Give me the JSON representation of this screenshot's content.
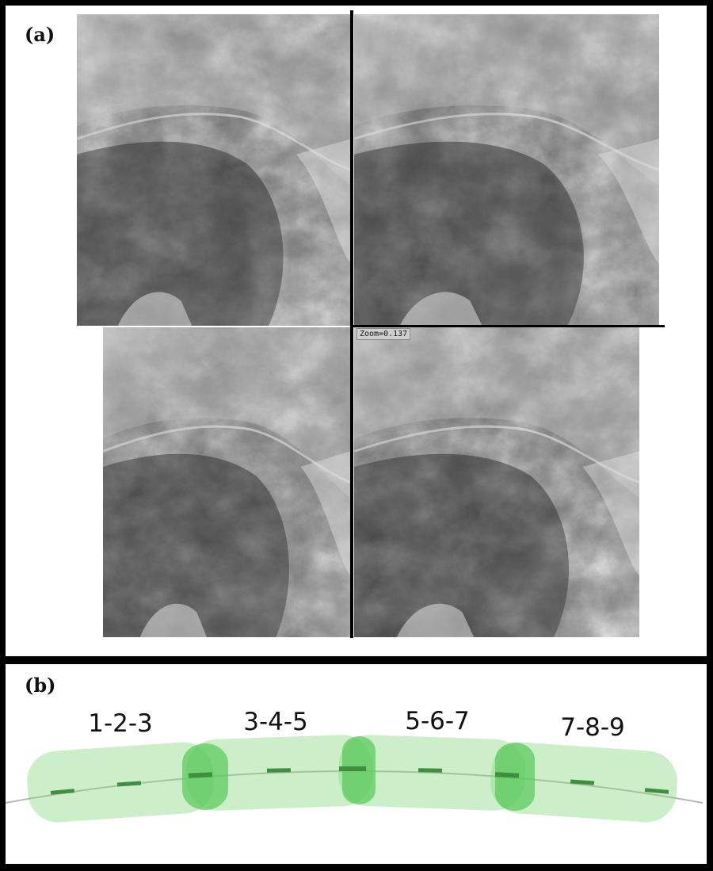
{
  "panel_a": {
    "label": "(a)",
    "zoom_label": "Zoom=0.137",
    "images": [
      {
        "id": "top-left"
      },
      {
        "id": "top-right"
      },
      {
        "id": "bottom-left"
      },
      {
        "id": "bottom-right"
      }
    ]
  },
  "panel_b": {
    "label": "(b)",
    "groups": [
      {
        "label": "1-2-3"
      },
      {
        "label": "3-4-5"
      },
      {
        "label": "5-6-7"
      },
      {
        "label": "7-8-9"
      }
    ],
    "frame_count": 9,
    "colors": {
      "band": "#7fd77a",
      "overlap": "#57c957",
      "frame_mark": "#3f8f3f",
      "track": "#b8b8b8"
    }
  }
}
